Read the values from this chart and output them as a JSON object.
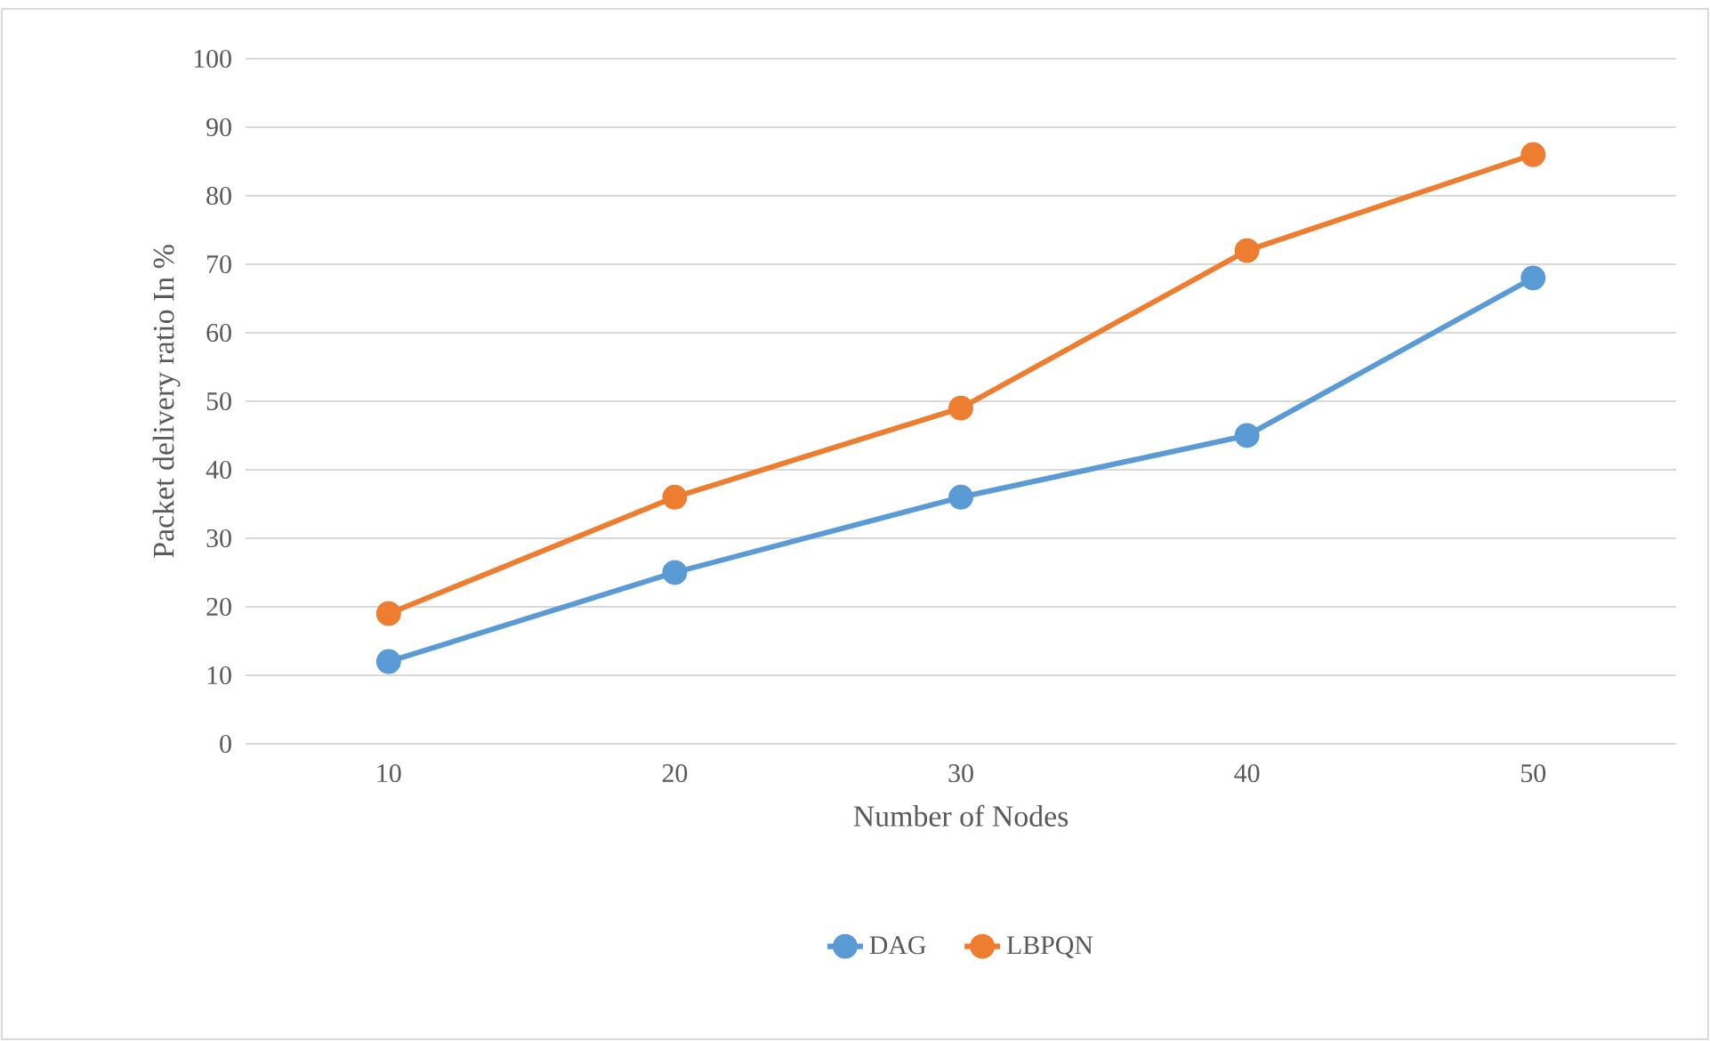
{
  "chart_data": {
    "type": "line",
    "xlabel": "Number of Nodes",
    "ylabel": "Packet delivery ratio In %",
    "categories": [
      "10",
      "20",
      "30",
      "40",
      "50"
    ],
    "series": [
      {
        "name": "DAG",
        "color": "#5b9bd5",
        "values": [
          12,
          25,
          36,
          45,
          68
        ]
      },
      {
        "name": "LBPQN",
        "color": "#ed7d31",
        "values": [
          19,
          36,
          49,
          72,
          86
        ]
      }
    ],
    "ylim": [
      0,
      100
    ],
    "yticks": [
      0,
      10,
      20,
      30,
      40,
      50,
      60,
      70,
      80,
      90,
      100
    ],
    "grid": "y",
    "legend": "bottom",
    "marker": "circle",
    "line_style": "solid"
  }
}
